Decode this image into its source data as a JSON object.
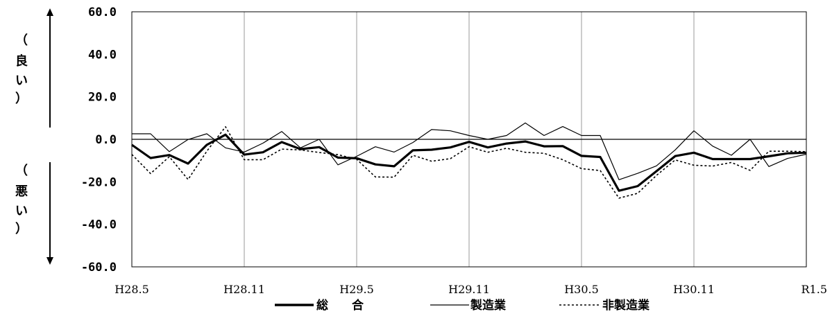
{
  "chart_data": {
    "type": "line",
    "x": [
      "H28.5",
      "H28.6",
      "H28.7",
      "H28.8",
      "H28.9",
      "H28.10",
      "H28.11",
      "H28.12",
      "H29.1",
      "H29.2",
      "H29.3",
      "H29.4",
      "H29.5",
      "H29.6",
      "H29.7",
      "H29.8",
      "H29.9",
      "H29.10",
      "H29.11",
      "H29.12",
      "H30.1",
      "H30.2",
      "H30.3",
      "H30.4",
      "H30.5",
      "H30.6",
      "H30.7",
      "H30.8",
      "H30.9",
      "H30.10",
      "H30.11",
      "H30.12",
      "H31.1",
      "H31.2",
      "H31.3",
      "H31.4",
      "R1.5"
    ],
    "xticks": [
      "H28.5",
      "H28.11",
      "H29.5",
      "H29.11",
      "H30.5",
      "H30.11",
      "R1.5"
    ],
    "yticks": [
      "60.0",
      "40.0",
      "20.0",
      "0.0",
      "-20.0",
      "-40.0",
      "-60.0"
    ],
    "ylim": [
      -60,
      60
    ],
    "grid": "vertical at half-year ticks",
    "series": [
      {
        "name": "総　合",
        "style": "thick-solid",
        "color": "#000000",
        "values": [
          -2.6,
          -8.8,
          -7.4,
          -11.4,
          -2.6,
          2.2,
          -7.2,
          -6.1,
          -1.3,
          -4.6,
          -3.7,
          -8.6,
          -8.9,
          -11.8,
          -12.7,
          -5.2,
          -4.9,
          -3.8,
          -1.2,
          -3.8,
          -2.0,
          -1.0,
          -3.3,
          -3.2,
          -7.8,
          -8.3,
          -24.2,
          -22.0,
          -15.0,
          -7.9,
          -6.3,
          -9.3,
          -9.3,
          -9.3,
          -8.0,
          -6.6,
          -6.3
        ]
      },
      {
        "name": "製造業",
        "style": "thin-solid",
        "color": "#000000",
        "values": [
          2.6,
          2.6,
          -5.8,
          -0.1,
          2.6,
          -4.0,
          -6.0,
          -1.8,
          3.7,
          -4.0,
          0.0,
          -12.0,
          -8.0,
          -3.5,
          -6.0,
          -1.5,
          4.6,
          4.0,
          1.8,
          0.0,
          1.8,
          7.7,
          1.8,
          6.0,
          1.8,
          1.8,
          -19.0,
          -16.0,
          -12.5,
          -5.0,
          4.0,
          -3.2,
          -7.5,
          0.0,
          -12.8,
          -9.0,
          -7.0
        ]
      },
      {
        "name": "非製造業",
        "style": "dotted",
        "color": "#000000",
        "values": [
          -7.1,
          -16.1,
          -8.2,
          -18.9,
          -5.6,
          5.9,
          -9.6,
          -9.6,
          -4.6,
          -5.0,
          -6.2,
          -7.2,
          -9.4,
          -17.7,
          -17.8,
          -7.5,
          -10.3,
          -9.1,
          -3.5,
          -6.1,
          -4.2,
          -6.1,
          -6.6,
          -9.6,
          -13.8,
          -14.7,
          -27.7,
          -25.4,
          -17.0,
          -9.7,
          -12.2,
          -12.6,
          -10.9,
          -14.6,
          -5.6,
          -5.6,
          -5.8
        ]
      }
    ]
  },
  "axis": {
    "up_label": [
      "（",
      "良",
      "い",
      "）"
    ],
    "down_label": [
      "（",
      "悪",
      "い",
      "）"
    ]
  },
  "legend": {
    "total": "総　　合",
    "manufacturing": "製造業",
    "non_manufacturing": "非製造業"
  }
}
